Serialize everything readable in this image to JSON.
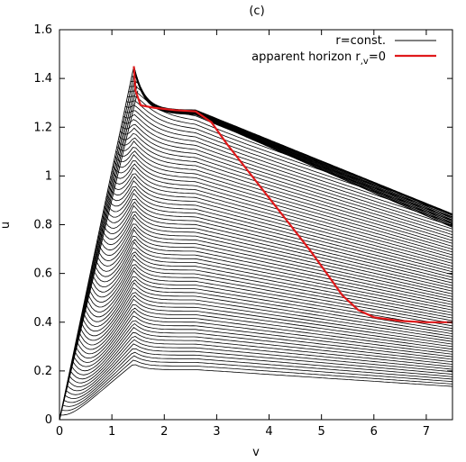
{
  "chart_data": {
    "type": "line",
    "title": "(c)",
    "xlabel": "v",
    "ylabel": "u",
    "xlim": [
      0,
      7.5
    ],
    "ylim": [
      0,
      1.6
    ],
    "xticks": [
      {
        "value": 0,
        "label": "0"
      },
      {
        "value": 1,
        "label": "1"
      },
      {
        "value": 2,
        "label": "2"
      },
      {
        "value": 3,
        "label": "3"
      },
      {
        "value": 4,
        "label": "4"
      },
      {
        "value": 5,
        "label": "5"
      },
      {
        "value": 6,
        "label": "6"
      },
      {
        "value": 7,
        "label": "7"
      }
    ],
    "yticks": [
      {
        "value": 0,
        "label": "0"
      },
      {
        "value": 0.2,
        "label": "0.2"
      },
      {
        "value": 0.4,
        "label": "0.4"
      },
      {
        "value": 0.6,
        "label": "0.6"
      },
      {
        "value": 0.8,
        "label": "0.8"
      },
      {
        "value": 1.0,
        "label": "1"
      },
      {
        "value": 1.2,
        "label": "1.2"
      },
      {
        "value": 1.4,
        "label": "1.4"
      },
      {
        "value": 1.6,
        "label": "1.6"
      }
    ],
    "grid": false,
    "legend_position": "top-right",
    "legend": {
      "entry1": "r=const.",
      "entry2_main": "apparent horizon r",
      "entry2_sub": ",v",
      "entry2_tail": "=0"
    },
    "colors": {
      "contours": "#000000",
      "horizon": "#e0191b"
    },
    "series": [
      {
        "name": "r=const.",
        "kind": "contour-family",
        "family_count": 70,
        "peak": [
          1.42,
          1.45
        ],
        "origin": [
          0,
          0
        ]
      },
      {
        "name": "apparent horizon r,v=0",
        "x": [
          1.42,
          1.45,
          1.55,
          1.8,
          2.2,
          2.6,
          2.9,
          3.2,
          3.6,
          4.0,
          4.4,
          4.8,
          5.1,
          5.4,
          5.7,
          6.0,
          6.5,
          7.0,
          7.5
        ],
        "y": [
          1.45,
          1.35,
          1.29,
          1.28,
          1.27,
          1.265,
          1.22,
          1.13,
          1.02,
          0.91,
          0.8,
          0.69,
          0.6,
          0.51,
          0.45,
          0.42,
          0.405,
          0.4,
          0.4
        ]
      }
    ]
  }
}
